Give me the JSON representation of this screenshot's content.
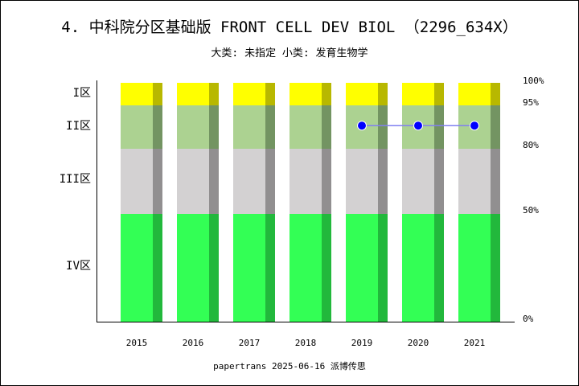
{
  "chart_data": {
    "type": "bar",
    "title": "4. 中科院分区基础版 FRONT CELL DEV BIOL （2296_634X）",
    "subtitle": "大类: 未指定 小类: 发育生物学",
    "footer": "papertrans 2025-06-16 派博传思",
    "categories": [
      "2015",
      "2016",
      "2017",
      "2018",
      "2019",
      "2020",
      "2021"
    ],
    "zones": [
      {
        "label": "IV区",
        "from": 0,
        "to": 50,
        "color": "#33ff55",
        "shade": "#22b83c"
      },
      {
        "label": "III区",
        "from": 50,
        "to": 80,
        "color": "#d3d1d2",
        "shade": "#918f90"
      },
      {
        "label": "II区",
        "from": 80,
        "to": 95,
        "color": "#acd291",
        "shade": "#739462"
      },
      {
        "label": "I区",
        "from": 95,
        "to": 100,
        "color": "#ffff00",
        "shade": "#b8b800"
      }
    ],
    "right_ticks": [
      "0%",
      "50%",
      "80%",
      "95%",
      "100%"
    ],
    "series": [
      {
        "values": [
          null,
          null,
          null,
          null,
          88,
          88,
          88
        ],
        "zone": [
          null,
          null,
          null,
          null,
          "II区",
          "II区",
          "II区"
        ],
        "color": "#0000ff",
        "line_color": "#8080f0"
      }
    ],
    "ylim": [
      0,
      100
    ],
    "grid": false
  }
}
